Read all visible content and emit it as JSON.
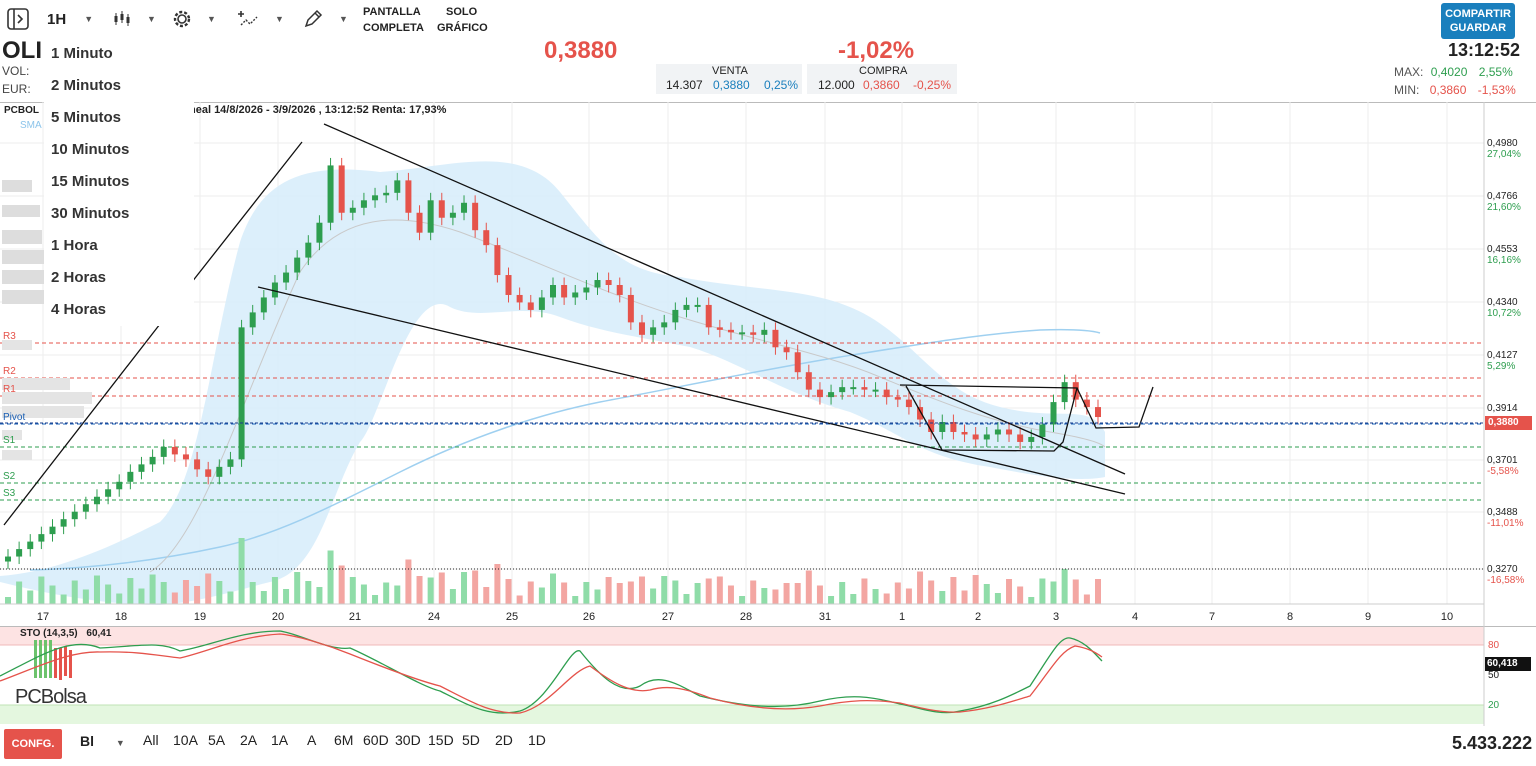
{
  "toolbar": {
    "timeframe": "1H",
    "fullscreen_label_1": "PANTALLA",
    "fullscreen_label_2": "COMPLETA",
    "chartonly_label_1": "SOLO",
    "chartonly_label_2": "GRÁFICO",
    "share_label_1": "COMPARTIR",
    "share_label_2": "GUARDAR"
  },
  "ticker": {
    "symbol": "OLI",
    "vol_label": "VOL:",
    "eur_label": "EUR:",
    "price": "0,3880",
    "change_pct": "-1,02%",
    "time": "13:12:52"
  },
  "orderbook": {
    "sell_label": "VENTA",
    "sell_qty": "14.307",
    "sell_price": "0,3880",
    "sell_pct": "0,25%",
    "buy_label": "COMPRA",
    "buy_qty": "12.000",
    "buy_price": "0,3860",
    "buy_pct": "-0,25%"
  },
  "stats": {
    "max_label": "MAX:",
    "max_value": "0,4020",
    "max_pct": "2,55%",
    "min_label": "MIN:",
    "min_value": "0,3860",
    "min_pct": "-1,53%"
  },
  "timeframe_menu": [
    "1 Minuto",
    "2 Minutos",
    "5 Minutos",
    "10 Minutos",
    "15 Minutos",
    "30 Minutos",
    "1 Hora",
    "2 Horas",
    "4 Horas"
  ],
  "chart_header": {
    "source": "PCBOL",
    "sma": "SMA",
    "info": "neal 14/8/2026 - 3/9/2026 , 13:12:52 Renta: 17,93%"
  },
  "price_axis": [
    {
      "price": "0,4980",
      "pct": "27,04%",
      "color": "#2e9e4f"
    },
    {
      "price": "0,4766",
      "pct": "21,60%",
      "color": "#2e9e4f"
    },
    {
      "price": "0,4553",
      "pct": "16,16%",
      "color": "#2e9e4f"
    },
    {
      "price": "0,4340",
      "pct": "10,72%",
      "color": "#2e9e4f"
    },
    {
      "price": "0,4127",
      "pct": "5,29%",
      "color": "#2e9e4f"
    },
    {
      "price": "0,3914",
      "pct": "",
      "color": "#2e9e4f"
    },
    {
      "price": "0,3701",
      "pct": "-5,58%",
      "color": "#e5534b"
    },
    {
      "price": "0,3488",
      "pct": "-11,01%",
      "color": "#e5534b"
    },
    {
      "price": "0,3270",
      "pct": "-16,58%",
      "color": "#e5534b"
    }
  ],
  "current_price_tag": "0,3880",
  "pivot_levels": [
    {
      "name": "R3",
      "color": "#e5534b"
    },
    {
      "name": "R2",
      "color": "#e5534b"
    },
    {
      "name": "R1",
      "color": "#e5534b"
    },
    {
      "name": "Pivot",
      "color": "#1a5fb4"
    },
    {
      "name": "S1",
      "color": "#2e9e4f"
    },
    {
      "name": "S2",
      "color": "#2e9e4f"
    },
    {
      "name": "S3",
      "color": "#2e9e4f"
    }
  ],
  "x_axis": [
    "17",
    "18",
    "19",
    "20",
    "21",
    "24",
    "25",
    "26",
    "27",
    "28",
    "31",
    "1",
    "2",
    "3",
    "4",
    "7",
    "8",
    "9",
    "10"
  ],
  "stochastic": {
    "label": "STO (14,3,5)",
    "value": "60,41",
    "tag": "60,418",
    "levels": [
      "80",
      "50",
      "20"
    ]
  },
  "logo": "PCBolsa",
  "bottom": {
    "config": "CONFG.",
    "style": "Bl",
    "ranges": [
      "All",
      "10A",
      "5A",
      "2A",
      "1A",
      "A",
      "6M",
      "60D",
      "30D",
      "15D",
      "5D",
      "2D",
      "1D"
    ],
    "volume_total": "5.433.222"
  },
  "colors": {
    "up": "#2e9e4f",
    "down": "#e5534b",
    "accent": "#1a7fbd",
    "band": "#d6ecfa"
  },
  "chart_data": {
    "type": "candlestick",
    "ylim": [
      0.327,
      0.505
    ],
    "close": [
      0.332,
      0.335,
      0.338,
      0.341,
      0.344,
      0.347,
      0.35,
      0.353,
      0.356,
      0.359,
      0.362,
      0.366,
      0.369,
      0.372,
      0.376,
      0.373,
      0.371,
      0.367,
      0.364,
      0.368,
      0.371,
      0.424,
      0.43,
      0.436,
      0.442,
      0.446,
      0.452,
      0.458,
      0.466,
      0.489,
      0.47,
      0.472,
      0.475,
      0.477,
      0.478,
      0.483,
      0.47,
      0.462,
      0.475,
      0.468,
      0.47,
      0.474,
      0.463,
      0.457,
      0.445,
      0.437,
      0.434,
      0.431,
      0.436,
      0.441,
      0.436,
      0.438,
      0.44,
      0.443,
      0.441,
      0.437,
      0.426,
      0.421,
      0.424,
      0.426,
      0.431,
      0.433,
      0.433,
      0.424,
      0.423,
      0.422,
      0.422,
      0.421,
      0.423,
      0.416,
      0.414,
      0.406,
      0.399,
      0.396,
      0.398,
      0.4,
      0.4,
      0.399,
      0.399,
      0.396,
      0.395,
      0.392,
      0.387,
      0.382,
      0.386,
      0.382,
      0.381,
      0.379,
      0.381,
      0.383,
      0.381,
      0.378,
      0.38,
      0.385,
      0.394,
      0.402,
      0.395,
      0.392,
      0.388
    ]
  }
}
